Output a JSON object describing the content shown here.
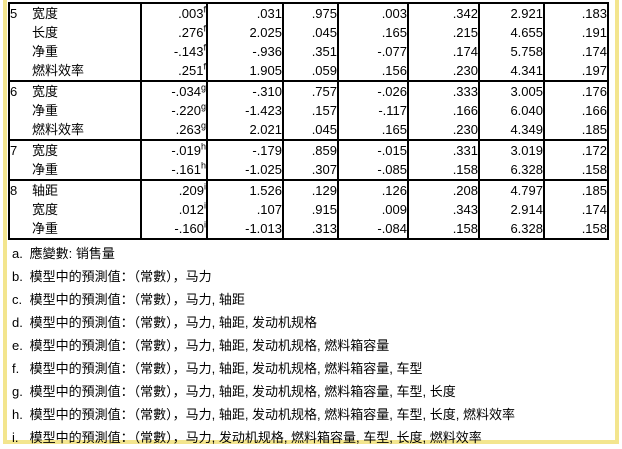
{
  "colors": {
    "selection_frame": "#f3e58e",
    "table_border": "#000000",
    "text": "#000000",
    "background": "#ffffff"
  },
  "table": {
    "groups": [
      {
        "model": "5",
        "sup": "f",
        "rows": [
          {
            "variable": "宽度",
            "values": [
              ".003",
              ".031",
              ".975",
              ".003",
              ".342",
              "2.921",
              ".183"
            ]
          },
          {
            "variable": "长度",
            "values": [
              ".276",
              "2.025",
              ".045",
              ".165",
              ".215",
              "4.655",
              ".191"
            ]
          },
          {
            "variable": "净重",
            "values": [
              "-.143",
              "-.936",
              ".351",
              "-.077",
              ".174",
              "5.758",
              ".174"
            ]
          },
          {
            "variable": "燃料效率",
            "values": [
              ".251",
              "1.905",
              ".059",
              ".156",
              ".230",
              "4.341",
              ".197"
            ]
          }
        ]
      },
      {
        "model": "6",
        "sup": "g",
        "rows": [
          {
            "variable": "宽度",
            "values": [
              "-.034",
              "-.310",
              ".757",
              "-.026",
              ".333",
              "3.005",
              ".176"
            ]
          },
          {
            "variable": "净重",
            "values": [
              "-.220",
              "-1.423",
              ".157",
              "-.117",
              ".166",
              "6.040",
              ".166"
            ]
          },
          {
            "variable": "燃料效率",
            "values": [
              ".263",
              "2.021",
              ".045",
              ".165",
              ".230",
              "4.349",
              ".185"
            ]
          }
        ]
      },
      {
        "model": "7",
        "sup": "h",
        "rows": [
          {
            "variable": "宽度",
            "values": [
              "-.019",
              "-.179",
              ".859",
              "-.015",
              ".331",
              "3.019",
              ".172"
            ]
          },
          {
            "variable": "净重",
            "values": [
              "-.161",
              "-1.025",
              ".307",
              "-.085",
              ".158",
              "6.328",
              ".158"
            ]
          }
        ]
      },
      {
        "model": "8",
        "sup": "i",
        "rows": [
          {
            "variable": "轴距",
            "values": [
              ".209",
              "1.526",
              ".129",
              ".126",
              ".208",
              "4.797",
              ".185"
            ]
          },
          {
            "variable": "宽度",
            "values": [
              ".012",
              ".107",
              ".915",
              ".009",
              ".343",
              "2.914",
              ".174"
            ]
          },
          {
            "variable": "净重",
            "values": [
              "-.160",
              "-1.013",
              ".313",
              "-.084",
              ".158",
              "6.328",
              ".158"
            ]
          }
        ]
      }
    ]
  },
  "footnotes": [
    {
      "label": "a.",
      "text": "應變數: 销售量"
    },
    {
      "label": "b.",
      "text": "模型中的預測值：（常數），马力"
    },
    {
      "label": "c.",
      "text": "模型中的預測值：（常數），马力, 轴距"
    },
    {
      "label": "d.",
      "text": "模型中的預測值：（常數），马力, 轴距, 发动机规格"
    },
    {
      "label": "e.",
      "text": "模型中的預測值：（常數），马力, 轴距, 发动机规格, 燃料箱容量"
    },
    {
      "label": "f.",
      "text": "模型中的預測值：（常數），马力, 轴距, 发动机规格, 燃料箱容量, 车型"
    },
    {
      "label": "g.",
      "text": "模型中的預測值：（常數），马力, 轴距, 发动机规格, 燃料箱容量, 车型, 长度"
    },
    {
      "label": "h.",
      "text": "模型中的預測值：（常數），马力, 轴距, 发动机规格, 燃料箱容量, 车型, 长度, 燃料效率"
    },
    {
      "label": "i.",
      "text": "模型中的預測值：（常數），马力, 发动机规格, 燃料箱容量, 车型, 长度, 燃料效率"
    }
  ]
}
